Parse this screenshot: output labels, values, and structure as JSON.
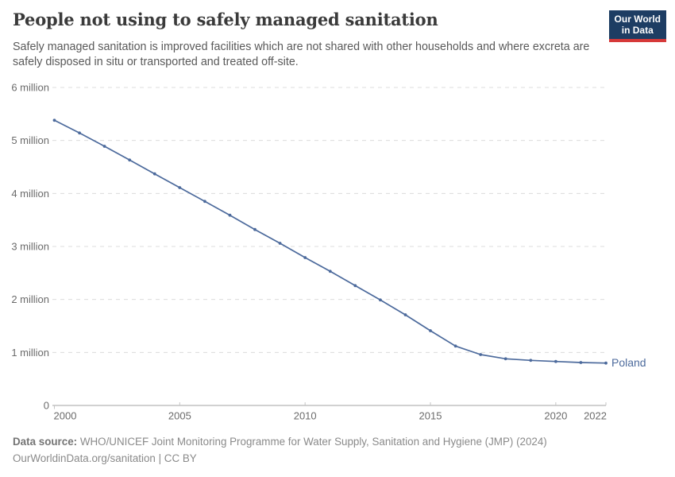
{
  "header": {
    "title": "People not using to safely managed sanitation",
    "subtitle": "Safely managed sanitation is improved facilities which are not shared with other households and where excreta are safely disposed in situ or transported and treated off-site.",
    "logo": {
      "line1": "Our World",
      "line2": "in Data",
      "bg_color": "#1d3d63",
      "accent_color": "#d63939"
    }
  },
  "chart_data": {
    "type": "line",
    "title": "People not using to safely managed sanitation",
    "unit": "million people",
    "x": [
      2000,
      2001,
      2002,
      2003,
      2004,
      2005,
      2006,
      2007,
      2008,
      2009,
      2010,
      2011,
      2012,
      2013,
      2014,
      2015,
      2016,
      2017,
      2018,
      2019,
      2020,
      2021,
      2022
    ],
    "series": [
      {
        "name": "Poland",
        "color": "#4c6a9c",
        "values": [
          5.38,
          5.14,
          4.89,
          4.63,
          4.37,
          4.11,
          3.85,
          3.59,
          3.32,
          3.06,
          2.79,
          2.53,
          2.26,
          1.99,
          1.71,
          1.41,
          1.12,
          0.96,
          0.88,
          0.85,
          0.83,
          0.81,
          0.8
        ]
      }
    ],
    "xlabel": "",
    "ylabel": "",
    "ylim": [
      0,
      6
    ],
    "xlim": [
      2000,
      2022
    ],
    "yticks": [
      {
        "value": 0,
        "label": "0"
      },
      {
        "value": 1,
        "label": "1 million"
      },
      {
        "value": 2,
        "label": "2 million"
      },
      {
        "value": 3,
        "label": "3 million"
      },
      {
        "value": 4,
        "label": "4 million"
      },
      {
        "value": 5,
        "label": "5 million"
      },
      {
        "value": 6,
        "label": "6 million"
      }
    ],
    "xticks": [
      2000,
      2005,
      2010,
      2015,
      2020,
      2022
    ],
    "grid": "horizontal-dashed",
    "legend": "end-of-line-label",
    "colors": {
      "gridline": "#dcdcdc",
      "axis": "#a3a3a3",
      "tick": "#c4c4c4",
      "tick_label": "#6b6b6b"
    }
  },
  "footer": {
    "source_label": "Data source:",
    "source_text": "WHO/UNICEF Joint Monitoring Programme for Water Supply, Sanitation and Hygiene (JMP) (2024)",
    "license_text": "OurWorldinData.org/sanitation | CC BY"
  }
}
